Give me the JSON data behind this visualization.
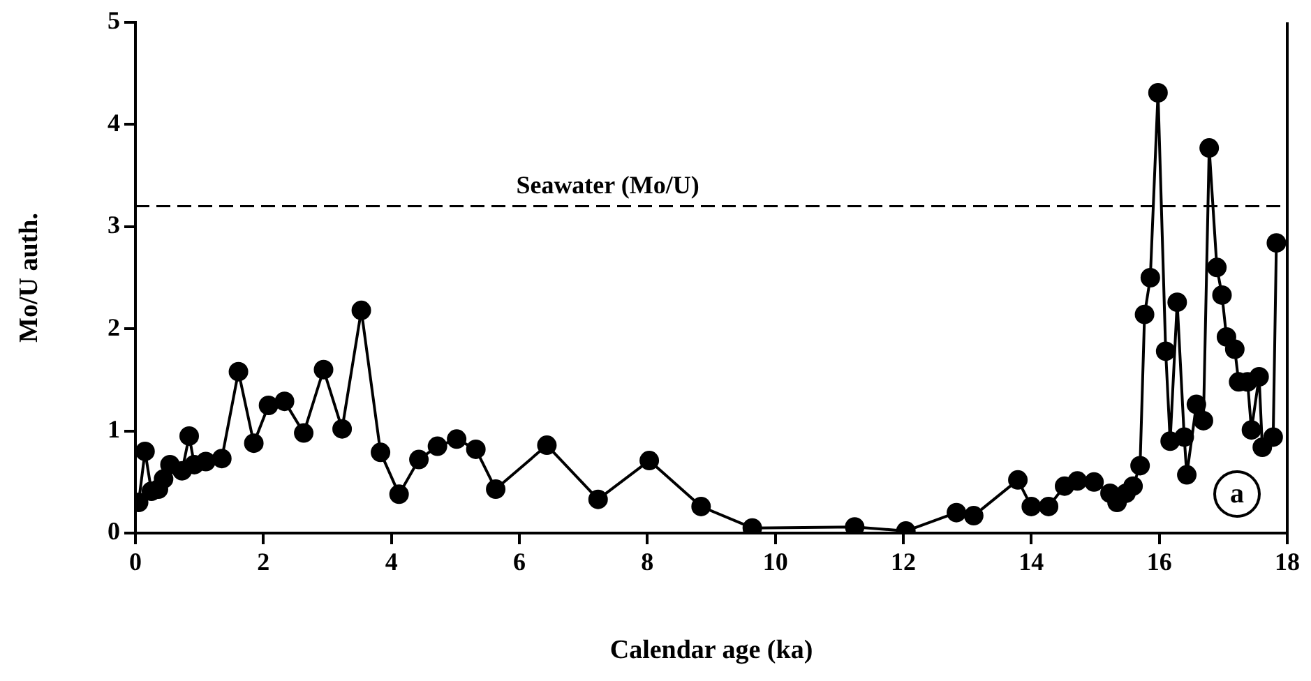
{
  "chart_data": {
    "type": "line",
    "xlabel": "Calendar age (ka)",
    "ylabel": "Mo/U auth.",
    "x": [
      0.05,
      0.15,
      0.25,
      0.36,
      0.44,
      0.54,
      0.73,
      0.84,
      0.92,
      1.1,
      1.35,
      1.61,
      1.85,
      2.08,
      2.33,
      2.63,
      2.94,
      3.23,
      3.53,
      3.83,
      4.12,
      4.43,
      4.72,
      5.02,
      5.32,
      5.63,
      6.43,
      7.23,
      8.03,
      8.84,
      9.64,
      11.24,
      12.04,
      12.83,
      13.1,
      13.79,
      14.0,
      14.27,
      14.52,
      14.72,
      14.98,
      15.23,
      15.34,
      15.48,
      15.59,
      15.7,
      15.77,
      15.86,
      15.98,
      16.1,
      16.17,
      16.28,
      16.39,
      16.43,
      16.58,
      16.69,
      16.78,
      16.9,
      16.98,
      17.05,
      17.18,
      17.24,
      17.38,
      17.44,
      17.56,
      17.61,
      17.78,
      17.83
    ],
    "series": [
      {
        "color": "#000000",
        "values": [
          0.3,
          0.8,
          0.41,
          0.43,
          0.53,
          0.67,
          0.61,
          0.95,
          0.67,
          0.7,
          0.73,
          1.58,
          0.88,
          1.25,
          1.29,
          0.98,
          1.6,
          1.02,
          2.18,
          0.79,
          0.38,
          0.72,
          0.85,
          0.92,
          0.82,
          0.43,
          0.86,
          0.33,
          0.71,
          0.26,
          0.05,
          0.06,
          0.02,
          0.2,
          0.17,
          0.52,
          0.26,
          0.26,
          0.46,
          0.51,
          0.5,
          0.39,
          0.3,
          0.39,
          0.46,
          0.66,
          2.14,
          2.5,
          4.31,
          1.78,
          0.9,
          2.26,
          0.94,
          0.57,
          1.26,
          1.1,
          3.77,
          2.6,
          2.33,
          1.92,
          1.8,
          1.48,
          1.48,
          1.01,
          1.53,
          0.84,
          0.94,
          2.84
        ]
      }
    ],
    "xlim": [
      0,
      18
    ],
    "xticks": [
      0,
      2,
      4,
      6,
      8,
      10,
      12,
      14,
      16,
      18
    ],
    "ylim": [
      0,
      5
    ],
    "yticks": [
      0,
      1,
      2,
      3,
      4,
      5
    ],
    "grid": false,
    "legend": false,
    "marker": "circle",
    "line_style": "solid",
    "ref_lines": [
      {
        "axis": "y",
        "value": 3.2,
        "label": "Seawater (Mo/U)",
        "line_style": "dashed",
        "color": "#000000"
      }
    ],
    "annotations": [
      "a"
    ]
  }
}
